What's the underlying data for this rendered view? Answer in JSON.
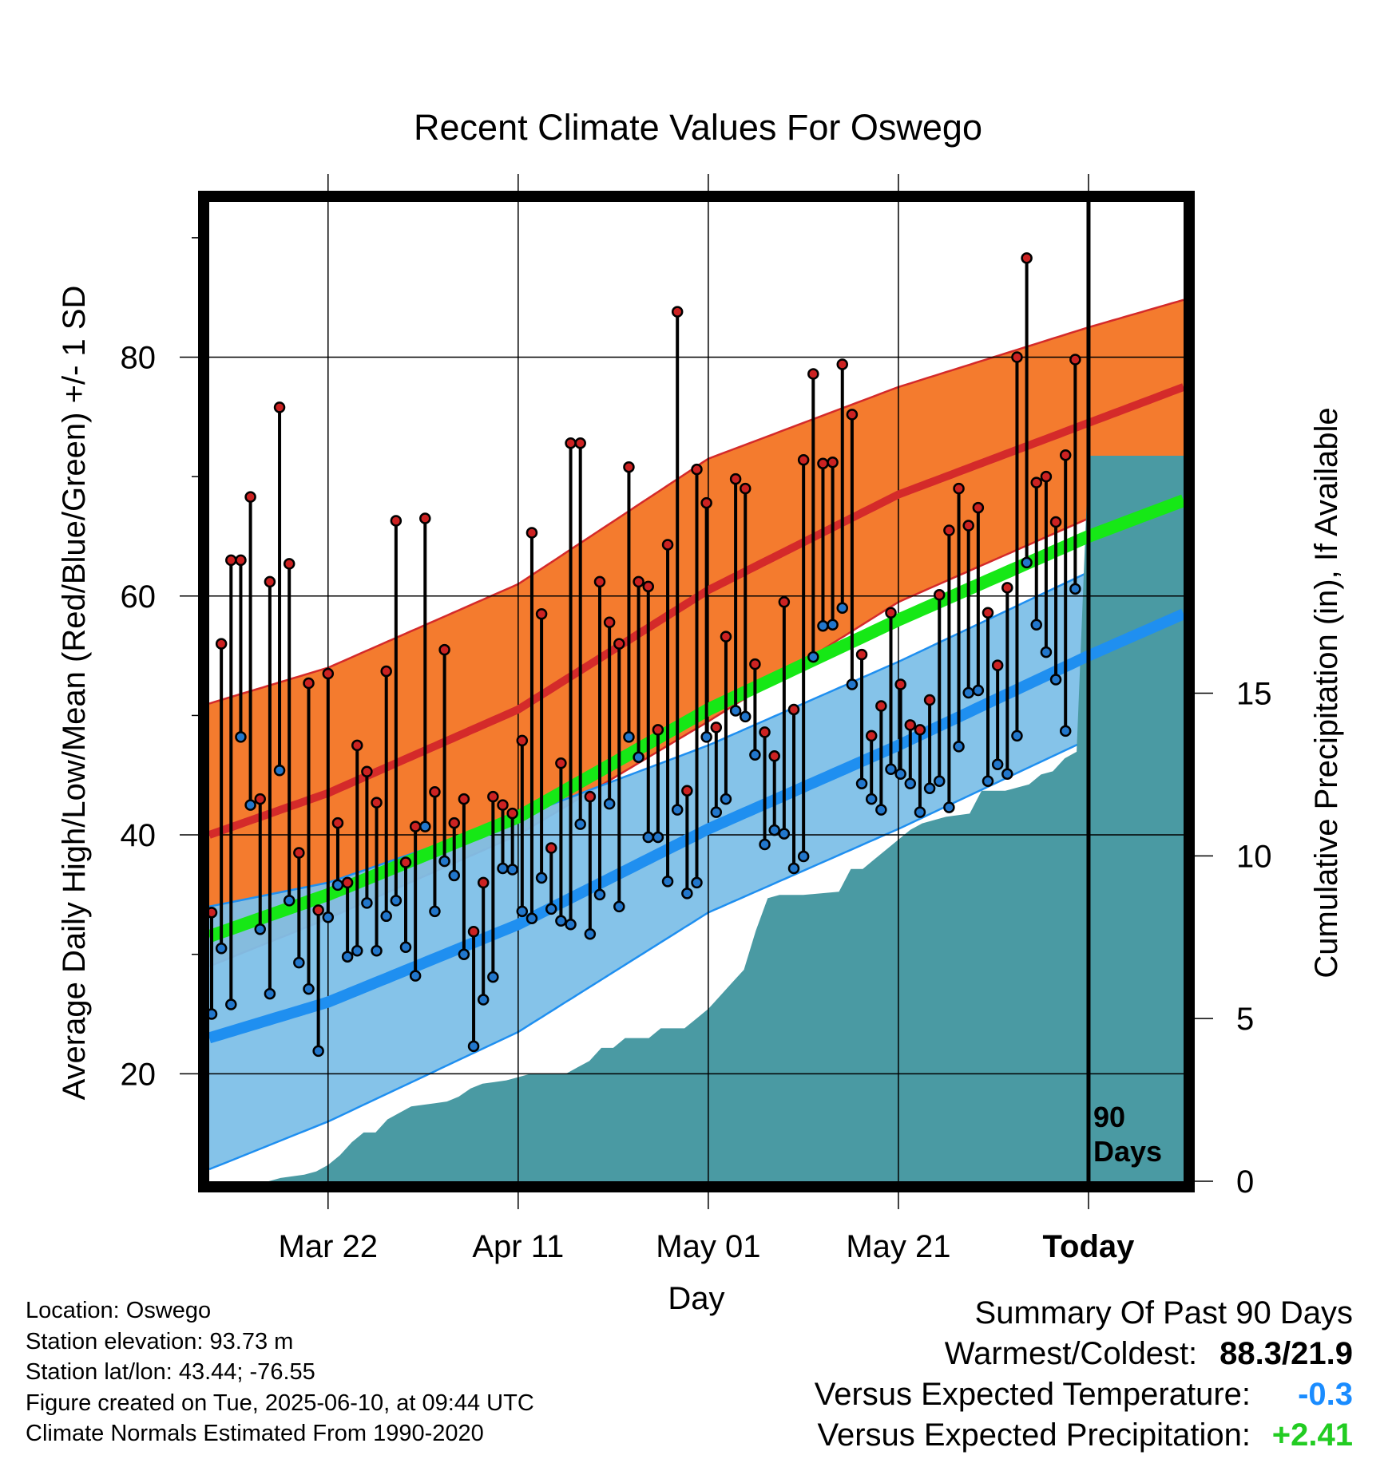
{
  "chart_data": {
    "type": "line",
    "title": "Recent Climate Values For Oswego",
    "xlabel": "Day",
    "ylabel_left": "Average Daily High/Low/Mean (Red/Blue/Green) +/- 1 SD",
    "ylabel_right": "Cumulative Precipitation (in), If Available",
    "x_range_days": [
      -75,
      7
    ],
    "ylim_left": [
      11,
      93
    ],
    "ylim_right": [
      0,
      30.1
    ],
    "x_ticks": [
      {
        "day": -65,
        "label": "Mar 22"
      },
      {
        "day": -49,
        "label": "Apr 11"
      },
      {
        "day": -33,
        "label": "May 01"
      },
      {
        "day": -17,
        "label": "May 21"
      },
      {
        "day": -1,
        "label": "Today"
      }
    ],
    "y_ticks_left": [
      20,
      40,
      60,
      80
    ],
    "y_ticks_right": [
      0,
      5,
      10,
      15
    ],
    "grid": true,
    "today_line_label": [
      "90",
      "Days"
    ],
    "colors": {
      "high_band": "#f47b2e",
      "high_mean": "#d42a2a",
      "low_band": "#7ec0e8",
      "low_mean": "#1f8ff0",
      "mean_line": "#16e816",
      "precip": "#4a9aa3",
      "high_dot": "#cc2222",
      "low_dot": "#2277cc"
    },
    "normals": {
      "days": [
        -75,
        -65,
        -49,
        -33,
        -17,
        -1,
        7
      ],
      "high_mean": [
        40,
        43.5,
        50.5,
        60.5,
        68.5,
        74.5,
        77.5
      ],
      "high_sd": [
        11,
        10.5,
        10.5,
        11,
        9,
        8,
        7.3
      ],
      "low_mean": [
        23,
        26,
        32.5,
        40.5,
        47.5,
        55,
        58.5
      ],
      "low_sd": [
        11,
        10,
        9,
        7,
        7,
        7,
        7
      ],
      "mean": [
        31.5,
        35,
        41.5,
        50.5,
        58,
        65,
        68
      ]
    },
    "daily_high": [
      33.5,
      56,
      63,
      63,
      68.3,
      43,
      61.2,
      75.8,
      62.7,
      38.5,
      52.7,
      33.7,
      53.5,
      41,
      36,
      47.5,
      45.3,
      42.7,
      53.7,
      66.3,
      37.7,
      40.7,
      66.5,
      43.6,
      55.5,
      41,
      43,
      31.9,
      36,
      43.2,
      42.5,
      41.8,
      47.9,
      65.3,
      58.5,
      38.9,
      46,
      72.8,
      72.8,
      43.2,
      61.2,
      57.8,
      56,
      70.8,
      61.2,
      60.8,
      48.8,
      64.3,
      83.8,
      43.7,
      70.6,
      67.8,
      49,
      56.6,
      69.8,
      69,
      54.3,
      48.6,
      46.6,
      59.5,
      50.5,
      71.4,
      78.6,
      71.1,
      71.2,
      79.4,
      75.2,
      55.1,
      48.3,
      50.8,
      58.6,
      52.6,
      49.2,
      48.8,
      51.3,
      60.1,
      65.5,
      69,
      65.9,
      67.4,
      58.6,
      54.2,
      60.7,
      80,
      88.3,
      69.5,
      70,
      66.2,
      71.8,
      79.8
    ],
    "daily_low": [
      25,
      30.5,
      25.8,
      48.2,
      42.5,
      32.1,
      26.7,
      45.4,
      34.5,
      29.3,
      27.1,
      21.9,
      33.1,
      35.8,
      29.8,
      30.3,
      34.3,
      30.3,
      33.2,
      34.5,
      30.6,
      28.2,
      40.7,
      33.6,
      37.8,
      36.6,
      30,
      22.3,
      26.2,
      28.1,
      37.2,
      37.1,
      33.6,
      33,
      36.4,
      33.8,
      32.8,
      32.5,
      40.9,
      31.7,
      35,
      42.6,
      34,
      48.2,
      46.5,
      39.8,
      39.8,
      36.1,
      42.1,
      35.1,
      36,
      48.2,
      41.9,
      43,
      50.4,
      49.9,
      46.7,
      39.2,
      40.4,
      40.1,
      37.2,
      38.2,
      54.9,
      57.5,
      57.6,
      59,
      52.6,
      44.3,
      43,
      42.1,
      45.5,
      45.1,
      44.3,
      41.9,
      43.9,
      44.5,
      42.3,
      47.4,
      51.9,
      52.1,
      44.5,
      45.9,
      45.1,
      48.3,
      62.8,
      57.6,
      55.3,
      53,
      48.7,
      60.6
    ],
    "precip_days": [
      -75,
      -70,
      -69,
      -67,
      -66,
      -65,
      -64,
      -63,
      -62,
      -61,
      -60,
      -59,
      -58,
      -57,
      -56,
      -55,
      -54,
      -53,
      -52,
      -51,
      -50,
      -49,
      -48,
      -45,
      -44,
      -43,
      -42,
      -41,
      -40,
      -38,
      -37,
      -35,
      -34,
      -33,
      -32,
      -31,
      -30,
      -29,
      -28,
      -27,
      -25,
      -22,
      -21,
      -20,
      -19,
      -18,
      -17,
      -16,
      -15,
      -13,
      -11,
      -10,
      -8,
      -6,
      -5,
      -4,
      -3,
      -2,
      -1,
      7
    ],
    "precip_cum": [
      0,
      0,
      0.1,
      0.2,
      0.3,
      0.5,
      0.8,
      1.2,
      1.5,
      1.5,
      1.9,
      2.1,
      2.3,
      2.35,
      2.4,
      2.45,
      2.6,
      2.85,
      3.0,
      3.05,
      3.1,
      3.2,
      3.3,
      3.3,
      3.5,
      3.7,
      4.1,
      4.1,
      4.4,
      4.4,
      4.7,
      4.7,
      5.0,
      5.3,
      5.7,
      6.1,
      6.5,
      7.7,
      8.7,
      8.8,
      8.8,
      8.9,
      9.6,
      9.6,
      9.9,
      10.2,
      10.5,
      10.8,
      11.0,
      11.2,
      11.3,
      12.0,
      12.0,
      12.2,
      12.5,
      12.6,
      13.0,
      13.2,
      22.3,
      22.3
    ],
    "summary": {
      "heading": "Summary Of Past 90 Days",
      "warmest_coldest_label": "Warmest/Coldest:",
      "warmest_coldest_value": "88.3/21.9",
      "temp_label": "Versus Expected Temperature:",
      "temp_value": "-0.3",
      "temp_color": "#1a8cff",
      "precip_label": "Versus Expected Precipitation:",
      "precip_value": "+2.41",
      "precip_color": "#22cc22"
    },
    "footer": {
      "location": "Location: Oswego",
      "elevation": "Station elevation: 93.73 m",
      "latlon": "Station lat/lon: 43.44; -76.55",
      "created": "Figure created on Tue, 2025-06-10, at 09:44 UTC",
      "normals": "Climate Normals Estimated From 1990-2020"
    }
  }
}
